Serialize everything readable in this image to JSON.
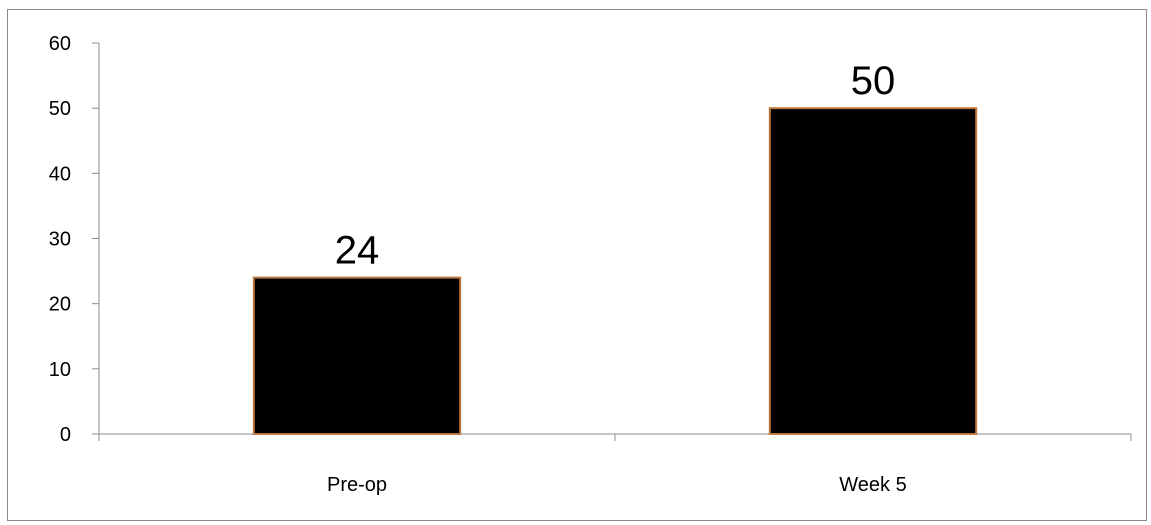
{
  "chart_data": {
    "type": "bar",
    "title": "",
    "xlabel": "",
    "ylabel": "",
    "categories": [
      "Pre-op",
      "Week 5"
    ],
    "values": [
      24,
      50
    ],
    "data_labels": [
      "24",
      "50"
    ],
    "ylim": [
      0,
      60
    ],
    "yticks": [
      0,
      10,
      20,
      30,
      40,
      50,
      60
    ],
    "ytick_labels": [
      "0",
      "10",
      "20",
      "30",
      "40",
      "50",
      "60"
    ],
    "grid": false,
    "legend": "none",
    "colors": {
      "bar_fill": "#000000",
      "bar_edge": "#c0783c",
      "axis": "#8c8c8c"
    }
  }
}
